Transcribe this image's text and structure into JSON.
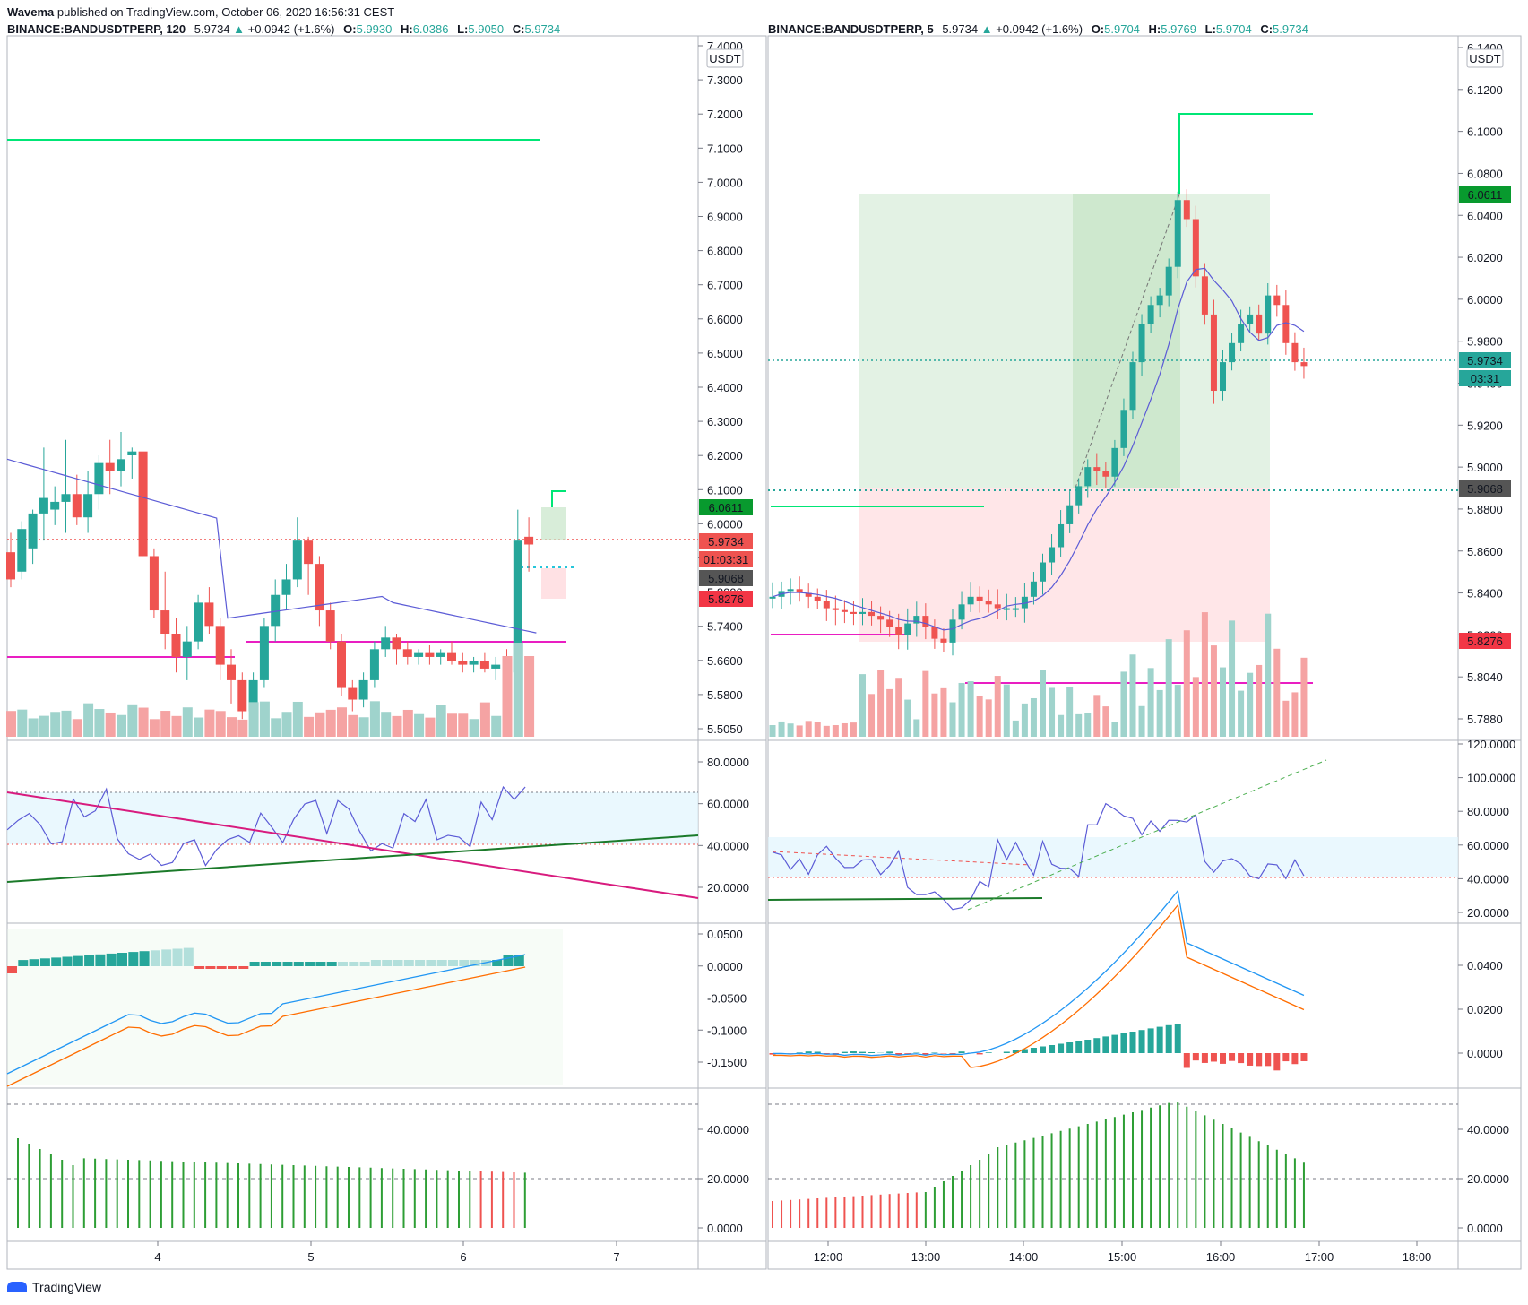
{
  "publisher": {
    "user": "Wavema",
    "text": "published on TradingView.com, October 06, 2020 16:56:31 CEST"
  },
  "left": {
    "symbol": "BINANCE:BANDUSDTPERP, 120",
    "last": "5.9734",
    "change": "+0.0942 (+1.6%)",
    "O": "5.9930",
    "H": "6.0386",
    "L": "5.9050",
    "C": "5.9734",
    "currency": "USDT",
    "price_ticks": [
      "7.4000",
      "7.3000",
      "7.2000",
      "7.1000",
      "7.0000",
      "6.9000",
      "6.8000",
      "6.7000",
      "6.6000",
      "6.5000",
      "6.4000",
      "6.3000",
      "6.2000",
      "6.1000",
      "6.0000",
      "5.9000",
      "5.8000",
      "5.7400",
      "5.6600",
      "5.5800",
      "5.5050"
    ],
    "price_labels": [
      {
        "text": "6.0611",
        "color": "#089a2e"
      },
      {
        "text": "5.9734",
        "color": "#ef5350"
      },
      {
        "text": "01:03:31",
        "color": "#ef5350"
      },
      {
        "text": "5.9068",
        "color": "#555555"
      },
      {
        "text": "5.8276",
        "color": "#f23645"
      }
    ],
    "rsi_ticks": [
      "80.0000",
      "60.0000",
      "40.0000",
      "20.0000"
    ],
    "macd_ticks": [
      "0.0500",
      "0.0000",
      "-0.0500",
      "-0.1000",
      "-0.1500"
    ],
    "adx_ticks": [
      "40.0000",
      "20.0000",
      "0.0000"
    ],
    "x_ticks": [
      "4",
      "5",
      "6",
      "7"
    ]
  },
  "right": {
    "symbol": "BINANCE:BANDUSDTPERP, 5",
    "last": "5.9734",
    "change": "+0.0942 (+1.6%)",
    "O": "5.9704",
    "H": "5.9769",
    "L": "5.9704",
    "C": "5.9734",
    "currency": "USDT",
    "price_ticks": [
      "6.1400",
      "6.1200",
      "6.1000",
      "6.0800",
      "6.0400",
      "6.0200",
      "6.0000",
      "5.9800",
      "5.9400",
      "5.9200",
      "5.9000",
      "5.8800",
      "5.8600",
      "5.8400",
      "5.8200",
      "5.8040",
      "5.7880"
    ],
    "price_labels": [
      {
        "text": "6.0611",
        "color": "#089a2e"
      },
      {
        "text": "5.9734",
        "color": "#26a69a"
      },
      {
        "text": "03:31",
        "color": "#26a69a"
      },
      {
        "text": "5.9068",
        "color": "#555555"
      },
      {
        "text": "5.8276",
        "color": "#f23645"
      }
    ],
    "rsi_ticks": [
      "120.0000",
      "100.0000",
      "80.0000",
      "60.0000",
      "40.0000",
      "20.0000"
    ],
    "macd_ticks": [
      "0.0400",
      "0.0200",
      "0.0000"
    ],
    "adx_ticks": [
      "40.0000",
      "20.0000",
      "0.0000"
    ],
    "x_ticks": [
      "12:00",
      "13:00",
      "14:00",
      "15:00",
      "16:00",
      "17:00",
      "18:00"
    ]
  },
  "footer": {
    "brand": "TradingView"
  },
  "colors": {
    "up": "#26a69a",
    "down": "#ef5350",
    "volUp": "#9fd3cc",
    "volDown": "#f5a3a3",
    "green": "#00e676",
    "magenta": "#e91ec2",
    "ma": "#5b5bd6",
    "dotted": "#26a69a"
  },
  "chart_data": [
    {
      "type": "candlestick",
      "title": "BINANCE:BANDUSDTPERP, 120",
      "x": [
        "4",
        "5",
        "6",
        "7"
      ],
      "ylim": [
        5.5,
        7.42
      ],
      "candles": [
        [
          5.95,
          6.0,
          5.86,
          5.88
        ],
        [
          5.9,
          6.03,
          5.88,
          6.01
        ],
        [
          5.96,
          6.06,
          5.92,
          6.05
        ],
        [
          6.05,
          6.22,
          5.98,
          6.09
        ],
        [
          6.06,
          6.12,
          6.02,
          6.08
        ],
        [
          6.08,
          6.24,
          6.0,
          6.1
        ],
        [
          6.1,
          6.15,
          6.02,
          6.04
        ],
        [
          6.04,
          6.16,
          6.0,
          6.1
        ],
        [
          6.1,
          6.2,
          6.06,
          6.18
        ],
        [
          6.18,
          6.24,
          6.1,
          6.16
        ],
        [
          6.16,
          6.26,
          6.12,
          6.19
        ],
        [
          6.2,
          6.22,
          6.14,
          6.21
        ],
        [
          6.21,
          6.2,
          5.94,
          5.94
        ],
        [
          5.94,
          5.96,
          5.78,
          5.8
        ],
        [
          5.8,
          5.9,
          5.7,
          5.74
        ],
        [
          5.74,
          5.78,
          5.64,
          5.68
        ],
        [
          5.68,
          5.76,
          5.62,
          5.72
        ],
        [
          5.72,
          5.84,
          5.7,
          5.82
        ],
        [
          5.82,
          5.86,
          5.74,
          5.76
        ],
        [
          5.76,
          5.78,
          5.62,
          5.66
        ],
        [
          5.66,
          5.7,
          5.56,
          5.62
        ],
        [
          5.62,
          5.64,
          5.52,
          5.54
        ],
        [
          5.54,
          5.64,
          5.5,
          5.62
        ],
        [
          5.62,
          5.78,
          5.6,
          5.76
        ],
        [
          5.76,
          5.88,
          5.72,
          5.84
        ],
        [
          5.84,
          5.92,
          5.8,
          5.88
        ],
        [
          5.88,
          6.04,
          5.86,
          5.98
        ],
        [
          5.98,
          5.99,
          5.84,
          5.92
        ],
        [
          5.92,
          5.94,
          5.76,
          5.8
        ],
        [
          5.8,
          5.82,
          5.7,
          5.72
        ],
        [
          5.72,
          5.74,
          5.58,
          5.6
        ],
        [
          5.6,
          5.62,
          5.54,
          5.57
        ],
        [
          5.57,
          5.64,
          5.55,
          5.62
        ],
        [
          5.62,
          5.72,
          5.6,
          5.7
        ],
        [
          5.7,
          5.76,
          5.68,
          5.73
        ],
        [
          5.73,
          5.74,
          5.66,
          5.7
        ],
        [
          5.7,
          5.72,
          5.66,
          5.68
        ],
        [
          5.68,
          5.7,
          5.66,
          5.69
        ],
        [
          5.69,
          5.71,
          5.66,
          5.68
        ],
        [
          5.68,
          5.7,
          5.66,
          5.69
        ],
        [
          5.69,
          5.72,
          5.66,
          5.67
        ],
        [
          5.67,
          5.69,
          5.64,
          5.66
        ],
        [
          5.66,
          5.68,
          5.64,
          5.67
        ],
        [
          5.67,
          5.69,
          5.64,
          5.65
        ],
        [
          5.65,
          5.68,
          5.62,
          5.66
        ],
        [
          5.66,
          5.7,
          5.62,
          5.64
        ],
        [
          5.64,
          6.06,
          5.62,
          5.98
        ],
        [
          5.99,
          6.04,
          5.9,
          5.97
        ]
      ],
      "levels": {
        "resistance": 7.11,
        "support": 5.74,
        "last": 5.9734
      }
    },
    {
      "type": "candlestick",
      "title": "BINANCE:BANDUSDTPERP, 5",
      "x": [
        "12:00",
        "13:00",
        "14:00",
        "15:00",
        "16:00",
        "17:00",
        "18:00"
      ],
      "ylim": [
        5.78,
        6.14
      ],
      "levels": {
        "target": 6.0611,
        "entry": 5.9068,
        "stop": 5.8276,
        "last": 5.9734,
        "high": 6.104,
        "low": 5.804
      }
    }
  ]
}
